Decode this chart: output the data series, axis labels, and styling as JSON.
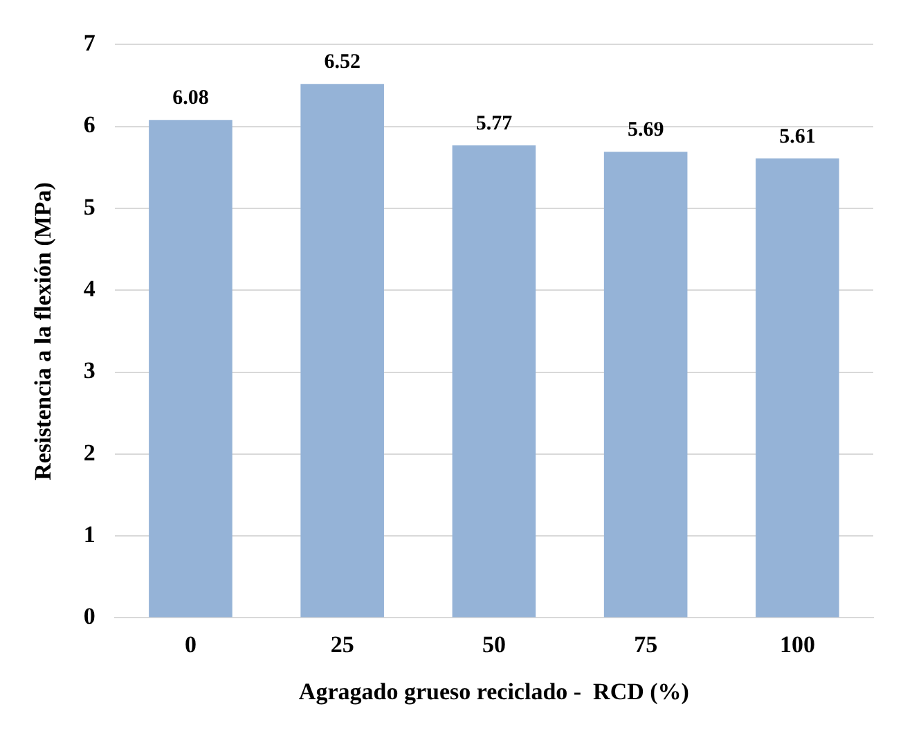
{
  "chart_data": {
    "type": "bar",
    "xlabel": "Agragado grueso reciclado -  RCD (%)",
    "ylabel": "Resistencia a la flexión (MPa)",
    "categories": [
      "0",
      "25",
      "50",
      "75",
      "100"
    ],
    "values": [
      6.08,
      6.52,
      5.77,
      5.69,
      5.61
    ],
    "color": "#95b3d7",
    "ylim": [
      0,
      7
    ],
    "yticks": [
      0,
      1,
      2,
      3,
      4,
      5,
      6,
      7
    ],
    "grid": "y",
    "data_labels": true,
    "legend": false
  }
}
